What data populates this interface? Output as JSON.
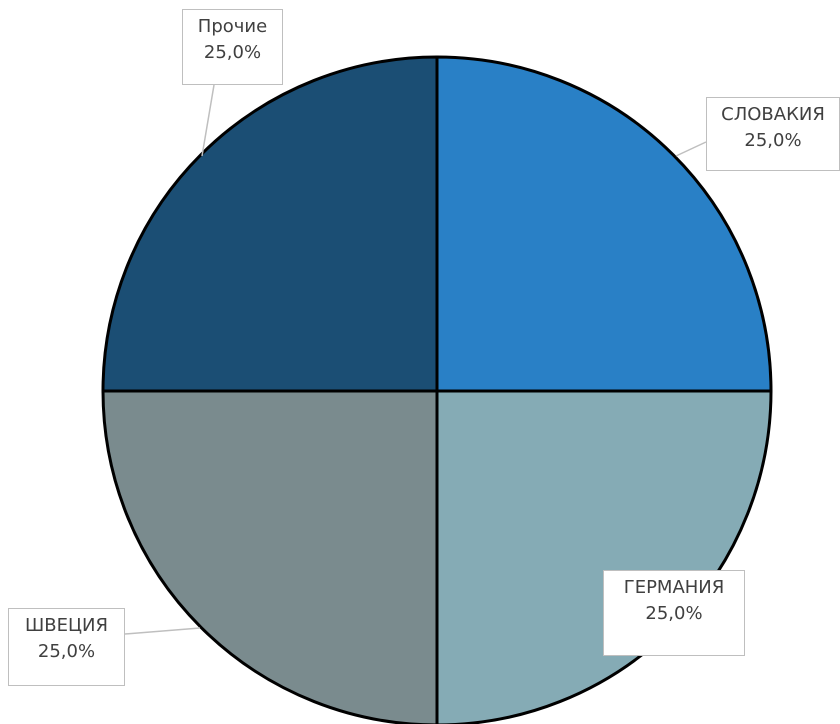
{
  "chart_data": {
    "type": "pie",
    "title": "",
    "slices": [
      {
        "label": "СЛОВАКИЯ",
        "value": 25.0,
        "percent_label": "25,0%",
        "color": "#2980c6"
      },
      {
        "label": "ГЕРМАНИЯ",
        "value": 25.0,
        "percent_label": "25,0%",
        "color": "#85abb5"
      },
      {
        "label": "ШВЕЦИЯ",
        "value": 25.0,
        "percent_label": "25,0%",
        "color": "#7a8b8e"
      },
      {
        "label": "Прочие",
        "value": 25.0,
        "percent_label": "25,0%",
        "color": "#1b4e74"
      }
    ],
    "start_angle": "12 o'clock, clockwise",
    "legend": "none",
    "data_labels": "callouts with leader lines"
  }
}
